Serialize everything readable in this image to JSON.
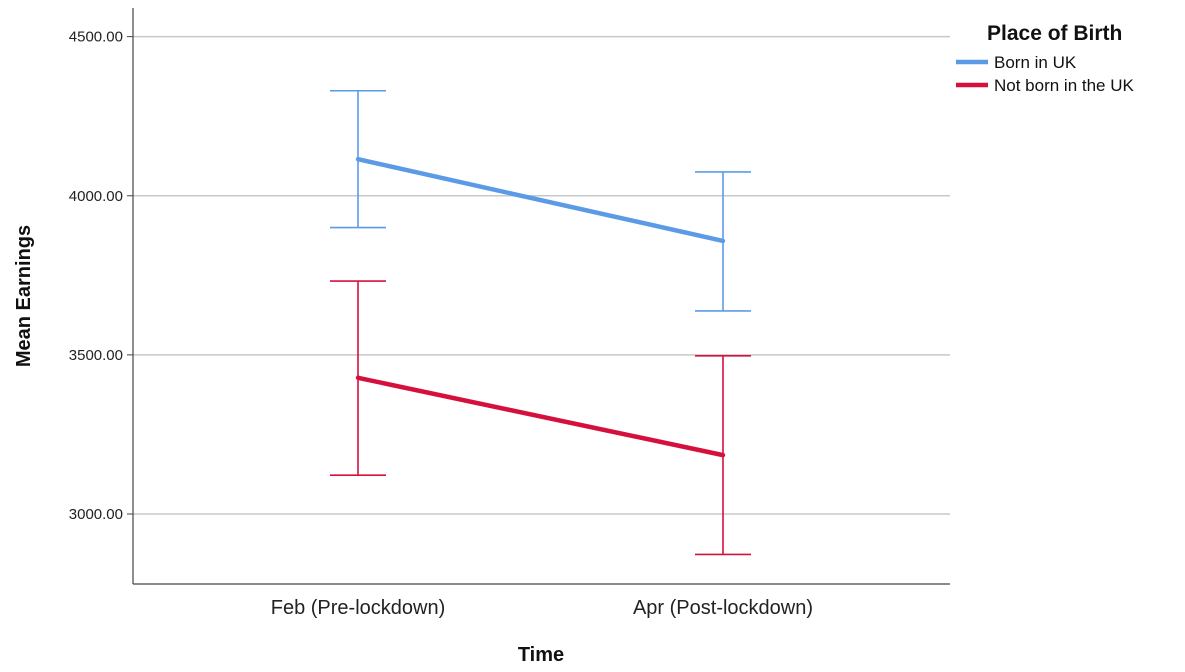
{
  "chart_data": {
    "type": "line",
    "categories": [
      "Feb (Pre-lockdown)",
      "Apr (Post-lockdown)"
    ],
    "series": [
      {
        "name": "Born in UK",
        "color": "#5b9be6",
        "values": [
          4115,
          3858
        ],
        "error_low": [
          3900,
          3638
        ],
        "error_high": [
          4330,
          4075
        ]
      },
      {
        "name": "Not born in the UK",
        "color": "#d6103c",
        "values": [
          3428,
          3185
        ],
        "error_low": [
          3122,
          2873
        ],
        "error_high": [
          3732,
          3497
        ]
      }
    ],
    "xlabel": "Time",
    "ylabel": "Mean Earnings",
    "ylim": [
      2780,
      4590
    ],
    "yticks": [
      3000,
      3500,
      4000,
      4500
    ],
    "ytick_labels": [
      "3000.00",
      "3500.00",
      "4000.00",
      "4500.00"
    ],
    "grid": true,
    "legend": {
      "title": "Place of Birth",
      "placement": "top-right"
    },
    "colors": {
      "grid": "#c8c8c8",
      "axis": "#444444"
    }
  }
}
